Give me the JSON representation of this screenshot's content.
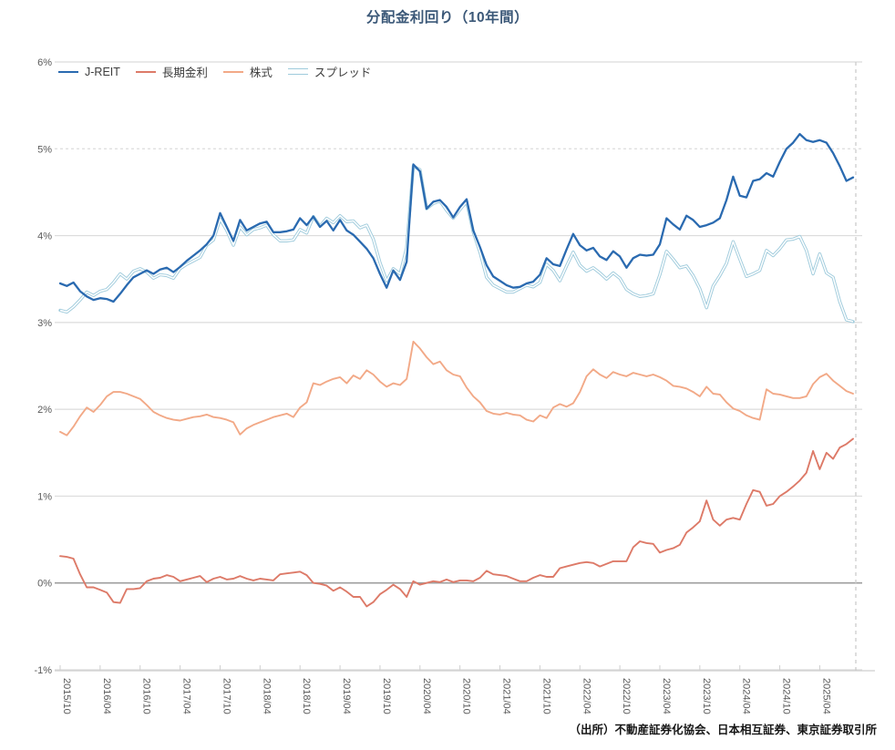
{
  "title": "分配金利回り（10年間）",
  "source_note": "（出所）不動産証券化協会、日本相互証券、東京証券取引所",
  "colors": {
    "title_text": "#3b5878",
    "axis_text": "#595959",
    "grid_line": "#dcdcdc",
    "zero_line": "#9e9e9e",
    "axis_line": "#cfcfcf",
    "end_dashed_line": "#c9c9c9",
    "jreit": "#2a6ab0",
    "rate": "#dd7a68",
    "stock": "#f2a987",
    "spread": "#9fcbdc"
  },
  "chart_data": {
    "type": "line",
    "title": "分配金利回り（10年間）",
    "xlabel": "",
    "ylabel": "",
    "ylim": [
      -1,
      6
    ],
    "y_tick_values": [
      6,
      5,
      4,
      3,
      2,
      1,
      0,
      -1
    ],
    "y_tick_labels": [
      "6%",
      "5%",
      "4%",
      "3%",
      "2%",
      "1%",
      "0%",
      "-1%"
    ],
    "y_tick_suffix": "%",
    "grid": "horizontal",
    "dashed_gridline_at": 5,
    "end_marker": "dashed-vertical-line",
    "legend_position": "top-left",
    "x_tick_step": 6,
    "x": [
      "2015/10",
      "2015/11",
      "2015/12",
      "2016/01",
      "2016/02",
      "2016/03",
      "2016/04",
      "2016/05",
      "2016/06",
      "2016/07",
      "2016/08",
      "2016/09",
      "2016/10",
      "2016/11",
      "2016/12",
      "2017/01",
      "2017/02",
      "2017/03",
      "2017/04",
      "2017/05",
      "2017/06",
      "2017/07",
      "2017/08",
      "2017/09",
      "2017/10",
      "2017/11",
      "2017/12",
      "2018/01",
      "2018/02",
      "2018/03",
      "2018/04",
      "2018/05",
      "2018/06",
      "2018/07",
      "2018/08",
      "2018/09",
      "2018/10",
      "2018/11",
      "2018/12",
      "2019/01",
      "2019/02",
      "2019/03",
      "2019/04",
      "2019/05",
      "2019/06",
      "2019/07",
      "2019/08",
      "2019/09",
      "2019/10",
      "2019/11",
      "2019/12",
      "2020/01",
      "2020/02",
      "2020/03",
      "2020/04",
      "2020/05",
      "2020/06",
      "2020/07",
      "2020/08",
      "2020/09",
      "2020/10",
      "2020/11",
      "2020/12",
      "2021/01",
      "2021/02",
      "2021/03",
      "2021/04",
      "2021/05",
      "2021/06",
      "2021/07",
      "2021/08",
      "2021/09",
      "2021/10",
      "2021/11",
      "2021/12",
      "2022/01",
      "2022/02",
      "2022/03",
      "2022/04",
      "2022/05",
      "2022/06",
      "2022/07",
      "2022/08",
      "2022/09",
      "2022/10",
      "2022/11",
      "2022/12",
      "2023/01",
      "2023/02",
      "2023/03",
      "2023/04",
      "2023/05",
      "2023/06",
      "2023/07",
      "2023/08",
      "2023/09",
      "2023/10",
      "2023/11",
      "2023/12",
      "2024/01",
      "2024/02",
      "2024/03",
      "2024/04",
      "2024/05",
      "2024/06",
      "2024/07",
      "2024/08",
      "2024/09",
      "2024/10",
      "2024/11",
      "2024/12",
      "2025/01",
      "2025/02",
      "2025/03",
      "2025/04",
      "2025/05",
      "2025/06",
      "2025/07",
      "2025/08",
      "2025/09"
    ],
    "series": [
      {
        "key": "stock",
        "name": "株式",
        "color": "#f2a987",
        "width": 1.9,
        "style": "solid",
        "values": [
          1.74,
          1.7,
          1.8,
          1.92,
          2.02,
          1.97,
          2.05,
          2.15,
          2.2,
          2.2,
          2.18,
          2.15,
          2.12,
          2.05,
          1.97,
          1.93,
          1.9,
          1.88,
          1.87,
          1.89,
          1.91,
          1.92,
          1.94,
          1.91,
          1.9,
          1.88,
          1.85,
          1.71,
          1.78,
          1.82,
          1.85,
          1.88,
          1.91,
          1.93,
          1.95,
          1.91,
          2.02,
          2.08,
          2.3,
          2.28,
          2.32,
          2.35,
          2.37,
          2.3,
          2.39,
          2.35,
          2.45,
          2.4,
          2.32,
          2.26,
          2.3,
          2.28,
          2.35,
          2.78,
          2.7,
          2.6,
          2.52,
          2.55,
          2.45,
          2.4,
          2.38,
          2.25,
          2.15,
          2.08,
          1.98,
          1.95,
          1.94,
          1.96,
          1.94,
          1.93,
          1.88,
          1.86,
          1.93,
          1.9,
          2.02,
          2.06,
          2.03,
          2.07,
          2.2,
          2.38,
          2.46,
          2.4,
          2.36,
          2.43,
          2.4,
          2.38,
          2.42,
          2.4,
          2.38,
          2.4,
          2.37,
          2.33,
          2.27,
          2.26,
          2.24,
          2.2,
          2.15,
          2.26,
          2.18,
          2.17,
          2.08,
          2.01,
          1.98,
          1.93,
          1.9,
          1.88,
          2.23,
          2.18,
          2.17,
          2.15,
          2.13,
          2.13,
          2.15,
          2.29,
          2.37,
          2.41,
          2.33,
          2.27,
          2.21,
          2.18
        ]
      },
      {
        "key": "rate",
        "name": "長期金利",
        "color": "#dd7a68",
        "width": 1.9,
        "style": "solid",
        "values": [
          0.31,
          0.3,
          0.28,
          0.1,
          -0.05,
          -0.05,
          -0.08,
          -0.11,
          -0.22,
          -0.23,
          -0.07,
          -0.07,
          -0.06,
          0.02,
          0.05,
          0.06,
          0.09,
          0.07,
          0.02,
          0.04,
          0.06,
          0.08,
          0.01,
          0.05,
          0.07,
          0.04,
          0.05,
          0.08,
          0.05,
          0.03,
          0.05,
          0.04,
          0.03,
          0.1,
          0.11,
          0.12,
          0.13,
          0.09,
          0.0,
          -0.01,
          -0.03,
          -0.09,
          -0.05,
          -0.1,
          -0.16,
          -0.16,
          -0.27,
          -0.22,
          -0.13,
          -0.08,
          -0.02,
          -0.07,
          -0.16,
          0.02,
          -0.02,
          0.0,
          0.02,
          0.01,
          0.04,
          0.01,
          0.03,
          0.03,
          0.02,
          0.06,
          0.14,
          0.1,
          0.09,
          0.08,
          0.05,
          0.02,
          0.02,
          0.06,
          0.09,
          0.07,
          0.07,
          0.17,
          0.19,
          0.21,
          0.23,
          0.24,
          0.23,
          0.19,
          0.22,
          0.25,
          0.25,
          0.25,
          0.41,
          0.48,
          0.46,
          0.45,
          0.35,
          0.38,
          0.4,
          0.44,
          0.58,
          0.64,
          0.71,
          0.95,
          0.73,
          0.66,
          0.73,
          0.75,
          0.73,
          0.91,
          1.07,
          1.05,
          0.89,
          0.91,
          1.0,
          1.05,
          1.11,
          1.18,
          1.27,
          1.52,
          1.31,
          1.5,
          1.43,
          1.56,
          1.6,
          1.66
        ]
      },
      {
        "key": "spread",
        "name": "スプレッド",
        "color": "#9fcbdc",
        "width": 3.4,
        "style": "double",
        "values": [
          3.14,
          3.12,
          3.18,
          3.26,
          3.35,
          3.31,
          3.36,
          3.38,
          3.46,
          3.56,
          3.5,
          3.59,
          3.62,
          3.58,
          3.51,
          3.55,
          3.54,
          3.51,
          3.62,
          3.67,
          3.71,
          3.75,
          3.89,
          3.95,
          4.19,
          4.06,
          3.89,
          4.1,
          4.01,
          4.07,
          4.09,
          4.12,
          4.01,
          3.94,
          3.94,
          3.95,
          4.07,
          4.03,
          4.22,
          4.11,
          4.2,
          4.15,
          4.23,
          4.16,
          4.17,
          4.09,
          4.12,
          3.96,
          3.69,
          3.48,
          3.62,
          3.56,
          3.86,
          4.8,
          4.76,
          4.31,
          4.37,
          4.4,
          4.29,
          4.2,
          4.3,
          4.39,
          4.04,
          3.81,
          3.52,
          3.43,
          3.39,
          3.35,
          3.35,
          3.39,
          3.43,
          3.41,
          3.46,
          3.67,
          3.6,
          3.48,
          3.65,
          3.81,
          3.66,
          3.59,
          3.63,
          3.57,
          3.5,
          3.57,
          3.51,
          3.38,
          3.33,
          3.3,
          3.31,
          3.33,
          3.55,
          3.82,
          3.73,
          3.63,
          3.65,
          3.54,
          3.39,
          3.17,
          3.42,
          3.54,
          3.68,
          3.93,
          3.73,
          3.53,
          3.56,
          3.6,
          3.83,
          3.77,
          3.85,
          3.95,
          3.96,
          3.99,
          3.83,
          3.56,
          3.79,
          3.57,
          3.52,
          3.24,
          3.03,
          3.01
        ]
      },
      {
        "key": "jreit",
        "name": "J-REIT",
        "color": "#2a6ab0",
        "width": 2.3,
        "style": "solid",
        "values": [
          3.45,
          3.42,
          3.46,
          3.36,
          3.3,
          3.26,
          3.28,
          3.27,
          3.24,
          3.33,
          3.43,
          3.52,
          3.56,
          3.6,
          3.56,
          3.61,
          3.63,
          3.58,
          3.64,
          3.71,
          3.77,
          3.83,
          3.9,
          4.0,
          4.26,
          4.1,
          3.94,
          4.18,
          4.06,
          4.1,
          4.14,
          4.16,
          4.04,
          4.04,
          4.05,
          4.07,
          4.2,
          4.12,
          4.22,
          4.1,
          4.17,
          4.06,
          4.18,
          4.06,
          4.01,
          3.93,
          3.85,
          3.74,
          3.56,
          3.4,
          3.6,
          3.49,
          3.7,
          4.82,
          4.74,
          4.31,
          4.39,
          4.41,
          4.33,
          4.21,
          4.33,
          4.42,
          4.06,
          3.87,
          3.66,
          3.53,
          3.48,
          3.43,
          3.4,
          3.41,
          3.45,
          3.47,
          3.55,
          3.74,
          3.67,
          3.65,
          3.84,
          4.02,
          3.89,
          3.83,
          3.86,
          3.76,
          3.72,
          3.82,
          3.76,
          3.63,
          3.74,
          3.78,
          3.77,
          3.78,
          3.9,
          4.2,
          4.13,
          4.07,
          4.23,
          4.18,
          4.1,
          4.12,
          4.15,
          4.2,
          4.41,
          4.68,
          4.46,
          4.44,
          4.63,
          4.65,
          4.72,
          4.68,
          4.85,
          5.0,
          5.07,
          5.17,
          5.1,
          5.08,
          5.1,
          5.07,
          4.95,
          4.8,
          4.63,
          4.67
        ]
      }
    ],
    "legend_order": [
      "jreit",
      "rate",
      "stock",
      "spread"
    ]
  }
}
